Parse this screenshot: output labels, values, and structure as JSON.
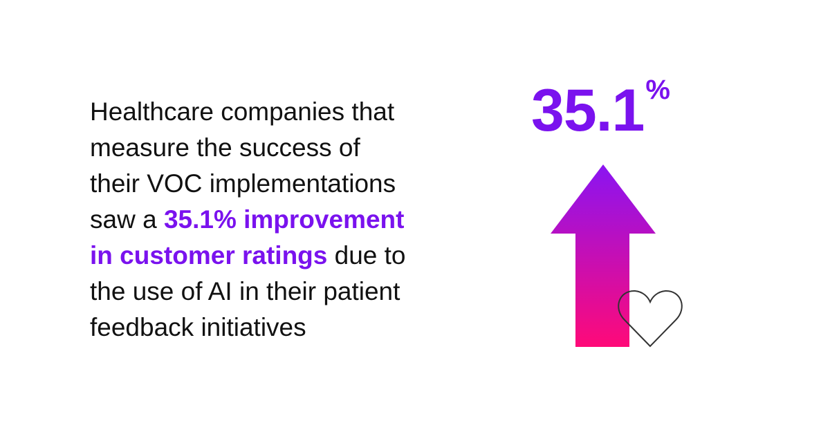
{
  "statement": {
    "lines": [
      [
        {
          "text": "Healthcare companies that"
        }
      ],
      [
        {
          "text": "measure the success of"
        }
      ],
      [
        {
          "text": "their VOC implementations"
        }
      ],
      [
        {
          "text": "saw a "
        },
        {
          "text": "35.1% improvement",
          "highlight": true
        }
      ],
      [
        {
          "text": "in customer ratings",
          "highlight": true
        },
        {
          "text": " due to"
        }
      ],
      [
        {
          "text": "the use of AI in their patient"
        }
      ],
      [
        {
          "text": "feedback initiatives"
        }
      ]
    ]
  },
  "stat": {
    "number": "35.1",
    "unit": "%"
  }
}
